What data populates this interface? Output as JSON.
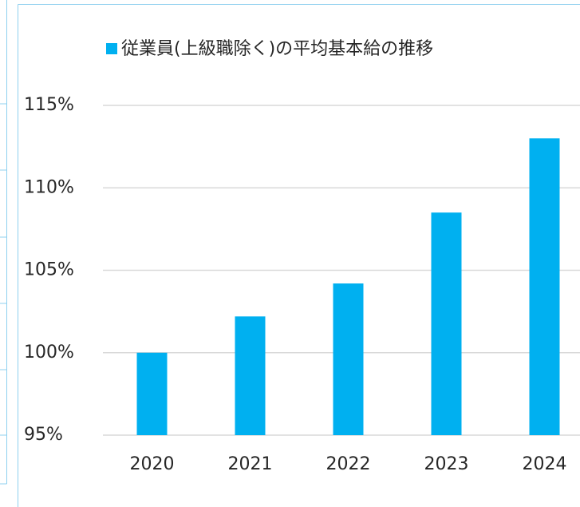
{
  "chart_data": {
    "type": "bar",
    "categories": [
      "2020",
      "2021",
      "2022",
      "2023",
      "2024"
    ],
    "series": [
      {
        "name": "従業員(上級職除く)の平均基本給の推移",
        "color": "#00b0f0",
        "values": [
          100,
          102.2,
          104.2,
          108.5,
          113.0
        ]
      }
    ],
    "ylim": [
      95,
      115
    ],
    "yticks": [
      {
        "value": 95,
        "label": "95%"
      },
      {
        "value": 100,
        "label": "100%"
      },
      {
        "value": 105,
        "label": "105%"
      },
      {
        "value": 110,
        "label": "110%"
      },
      {
        "value": 115,
        "label": "115%"
      }
    ],
    "grid": true,
    "legend": "top"
  }
}
